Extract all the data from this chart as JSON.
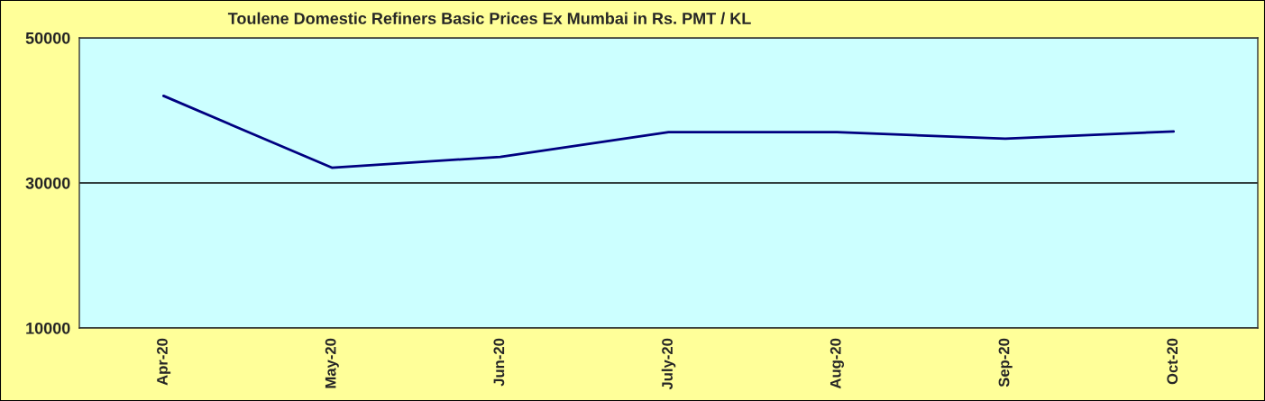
{
  "chart_data": {
    "type": "line",
    "title": "Toulene Domestic Refiners Basic Prices Ex Mumbai in Rs. PMT / KL",
    "categories": [
      "Apr-20",
      "May-20",
      "Jun-20",
      "July-20",
      "Aug-20",
      "Sep-20",
      "Oct-20"
    ],
    "series": [
      {
        "color": "#000080",
        "values": [
          42000,
          32100,
          33600,
          37000,
          37000,
          36100,
          37100
        ]
      }
    ],
    "ylim": [
      10000,
      50000
    ],
    "yticks": [
      10000,
      30000,
      50000
    ],
    "grid": "y",
    "line_style": "solid"
  }
}
